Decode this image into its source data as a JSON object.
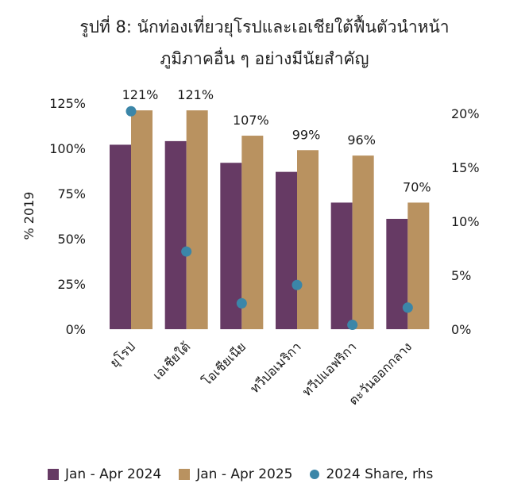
{
  "chart_data": {
    "type": "bar",
    "title": "รูปที่ 8: นักท่องเที่ยวยุโรปและเอเชียใต้ฟื้นตัวนำหน้า",
    "subtitle": "ภูมิภาคอื่น ๆ อย่างมีนัยสำคัญ",
    "ylabel": "% 2019",
    "ylim": [
      0,
      125
    ],
    "y_ticks": [
      "0%",
      "25%",
      "50%",
      "75%",
      "100%",
      "125%"
    ],
    "y2lim": [
      0,
      20
    ],
    "y2_ticks": [
      "0%",
      "5%",
      "10%",
      "15%",
      "20%"
    ],
    "categories": [
      "ยุโรป",
      "เอเชียใต้",
      "โอเชียเนีย",
      "ทวีปอเมริกา",
      "ทวีปแอฟริกา",
      "ตะวันออกกลาง"
    ],
    "series": [
      {
        "name": "Jan - Apr 2024",
        "type": "bar",
        "axis": "left",
        "color": "#663a64",
        "values": [
          102,
          104,
          92,
          87,
          70,
          61
        ]
      },
      {
        "name": "Jan - Apr 2025",
        "type": "bar",
        "axis": "left",
        "color": "#b99260",
        "values": [
          121,
          121,
          107,
          99,
          96,
          70
        ],
        "labels": [
          "121%",
          "121%",
          "107%",
          "99%",
          "96%",
          "70%"
        ]
      },
      {
        "name": "2024 Share, rhs",
        "type": "scatter",
        "axis": "right",
        "color": "#3b86a8",
        "values": [
          20.2,
          7.2,
          2.4,
          4.1,
          0.4,
          2.0
        ]
      }
    ],
    "grid": false,
    "legend_position": "bottom"
  }
}
